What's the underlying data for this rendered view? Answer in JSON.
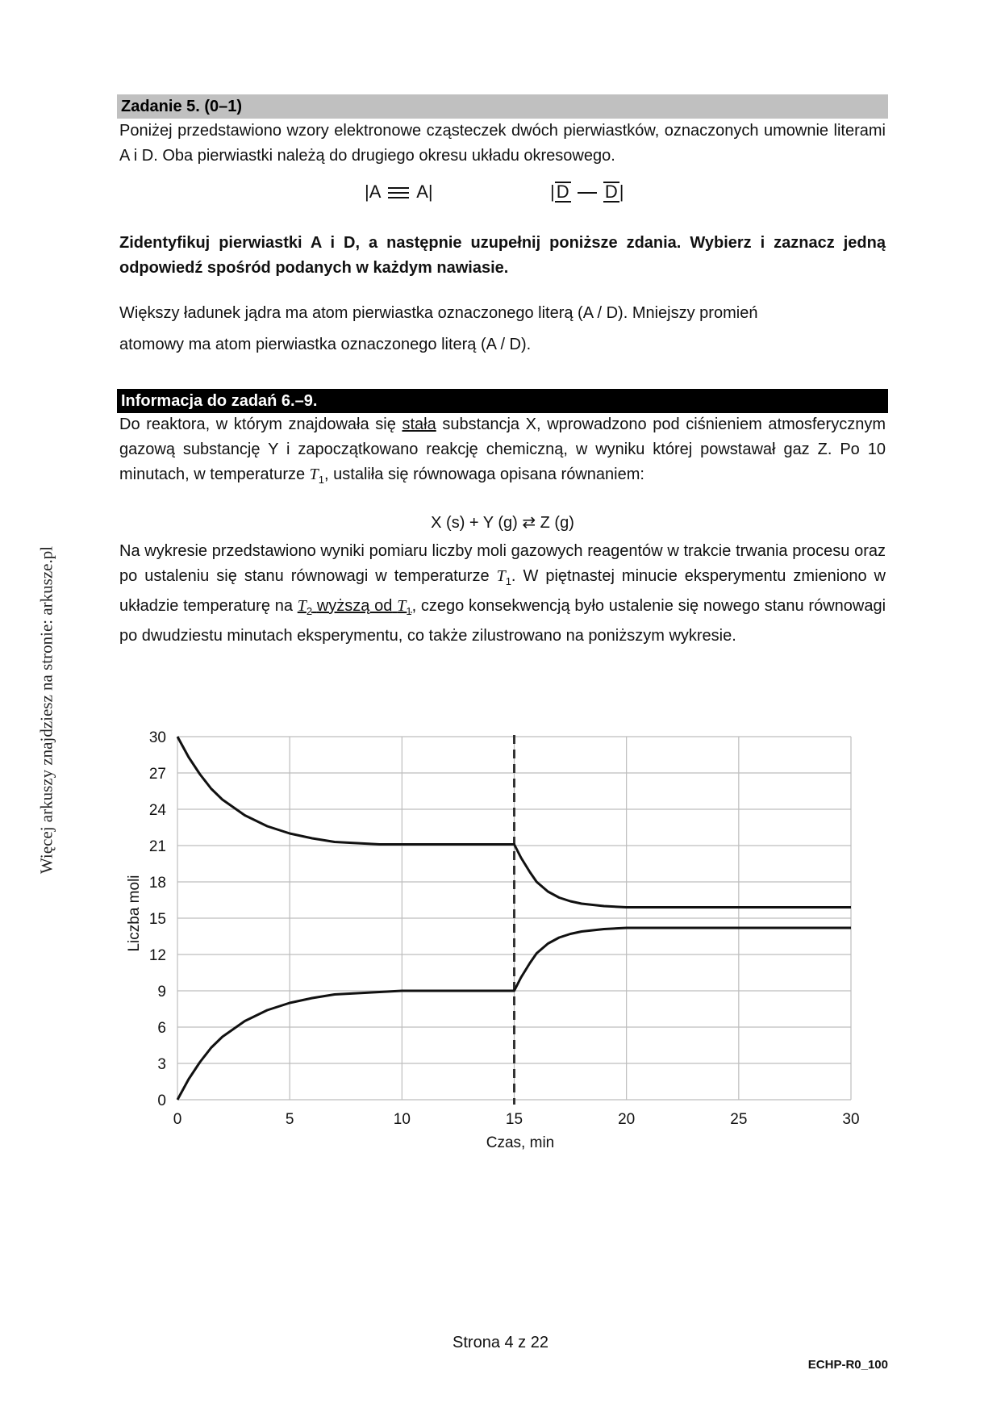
{
  "side_text": "Więcej arkuszy znajdziesz na stronie: arkusze.pl",
  "task5": {
    "header": "Zadanie 5. (0–1)",
    "intro": "Poniżej przedstawiono wzory elektronowe cząsteczek dwóch pierwiastków, oznaczonych umownie literami A i D. Oba pierwiastki należą do drugiego okresu układu okresowego.",
    "formula_a": "|A ☰ A|",
    "formula_d": "|D — D|",
    "instruction": "Zidentyfikuj pierwiastki A i D, a następnie uzupełnij poniższe zdania. Wybierz i zaznacz jedną odpowiedź spośród podanych w każdym nawiasie.",
    "sentence_1": "Większy ładunek jądra ma atom pierwiastka oznaczonego literą (A / D). Mniejszy promień",
    "sentence_2": "atomowy ma atom pierwiastka oznaczonego literą (A / D)."
  },
  "info": {
    "header": "Informacja do zadań 6.–9.",
    "p1_a": "Do reaktora, w którym znajdowała się",
    "p1_u": "stała",
    "p1_b": "substancja X, wprowadzono pod ciśnieniem atmosferycznym gazową substancję Y i zapoczątkowano reakcję chemiczną, w wyniku której powstawał gaz Z. Po 10 minutach, w temperaturze",
    "p1_c": ", ustaliła się równowaga opisana równaniem:",
    "t1_letter": "T",
    "t1_sub": "1",
    "t2_sub": "2",
    "equation": "X (s) + Y (g) ⇄ Z (g)",
    "p2_a": "Na wykresie przedstawiono wyniki pomiaru liczby moli gazowych reagentów w trakcie trwania procesu oraz po ustaleniu się stanu równowagi w temperaturze",
    "p2_b": ". W piętnastej minucie eksperymentu zmieniono w układzie temperaturę na",
    "p2_u": "wyższą od",
    "p2_c": ", czego konsekwencją było ustalenie się nowego stanu równowagi po dwudziestu minutach eksperymentu, co także zilustrowano na poniższym wykresie."
  },
  "chart_data": {
    "type": "line",
    "xlabel": "Czas, min",
    "ylabel": "Liczba moli",
    "xlim": [
      0,
      30
    ],
    "ylim": [
      0,
      30
    ],
    "x_ticks": [
      0,
      5,
      10,
      15,
      20,
      25,
      30
    ],
    "y_ticks": [
      0,
      3,
      6,
      9,
      12,
      15,
      18,
      21,
      24,
      27,
      30
    ],
    "vertical_marker_x": 15,
    "grid": true,
    "series": [
      {
        "x": [
          0,
          0.5,
          1,
          1.5,
          2,
          3,
          4,
          5,
          6,
          7,
          8,
          9,
          10,
          11,
          12,
          13,
          14,
          15,
          15.3,
          15.7,
          16,
          16.5,
          17,
          17.5,
          18,
          19,
          20,
          22,
          25,
          30
        ],
        "y": [
          30,
          28.3,
          26.9,
          25.7,
          24.8,
          23.5,
          22.6,
          22.0,
          21.6,
          21.3,
          21.2,
          21.1,
          21.1,
          21.1,
          21.1,
          21.1,
          21.1,
          21.1,
          20.0,
          18.8,
          18.0,
          17.2,
          16.7,
          16.4,
          16.2,
          16.0,
          15.9,
          15.9,
          15.9,
          15.9
        ]
      },
      {
        "x": [
          0,
          0.5,
          1,
          1.5,
          2,
          3,
          4,
          5,
          6,
          7,
          8,
          9,
          10,
          11,
          12,
          13,
          14,
          15,
          15.3,
          15.7,
          16,
          16.5,
          17,
          17.5,
          18,
          19,
          20,
          22,
          25,
          30
        ],
        "y": [
          0,
          1.7,
          3.1,
          4.3,
          5.2,
          6.5,
          7.4,
          8.0,
          8.4,
          8.7,
          8.8,
          8.9,
          9.0,
          9.0,
          9.0,
          9.0,
          9.0,
          9.0,
          10.1,
          11.3,
          12.1,
          12.9,
          13.4,
          13.7,
          13.9,
          14.1,
          14.2,
          14.2,
          14.2,
          14.2
        ]
      }
    ]
  },
  "footer": {
    "page": "Strona 4 z 22",
    "code": "ECHP-R0_100"
  }
}
